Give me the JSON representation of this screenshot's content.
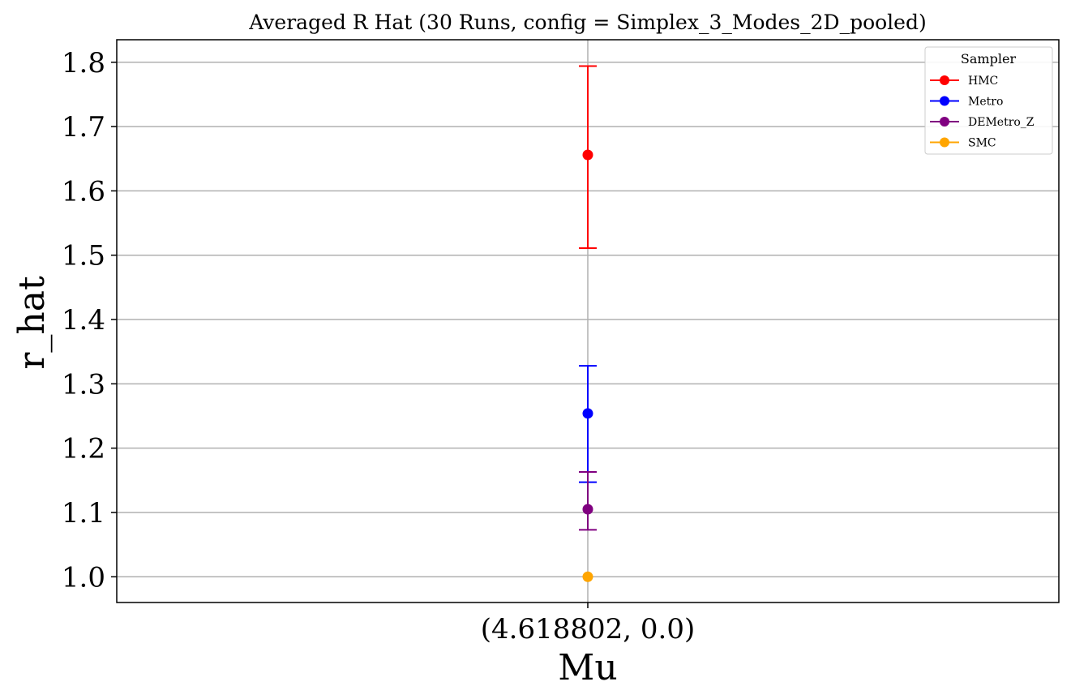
{
  "chart_data": {
    "type": "scatter",
    "title": "Averaged R Hat (30 Runs, config = Simplex_3_Modes_2D_pooled)",
    "xlabel": "Mu",
    "ylabel": "r_hat",
    "categories": [
      "(4.618802, 0.0)"
    ],
    "ylim": [
      0.96,
      1.835
    ],
    "yticks": [
      "1.0",
      "1.1",
      "1.2",
      "1.3",
      "1.4",
      "1.5",
      "1.6",
      "1.7",
      "1.8"
    ],
    "grid": true,
    "legend": {
      "title": "Sampler",
      "placement": "top-right"
    },
    "series": [
      {
        "name": "HMC",
        "color": "#ff0000",
        "values": [
          1.656
        ],
        "err_low": [
          1.511
        ],
        "err_high": [
          1.794
        ]
      },
      {
        "name": "Metro",
        "color": "#0000ff",
        "values": [
          1.254
        ],
        "err_low": [
          1.147
        ],
        "err_high": [
          1.328
        ]
      },
      {
        "name": "DEMetro_Z",
        "color": "#800080",
        "values": [
          1.105
        ],
        "err_low": [
          1.073
        ],
        "err_high": [
          1.163
        ]
      },
      {
        "name": "SMC",
        "color": "#ffa500",
        "values": [
          1.0
        ],
        "err_low": [
          1.0
        ],
        "err_high": [
          1.0
        ]
      }
    ]
  }
}
